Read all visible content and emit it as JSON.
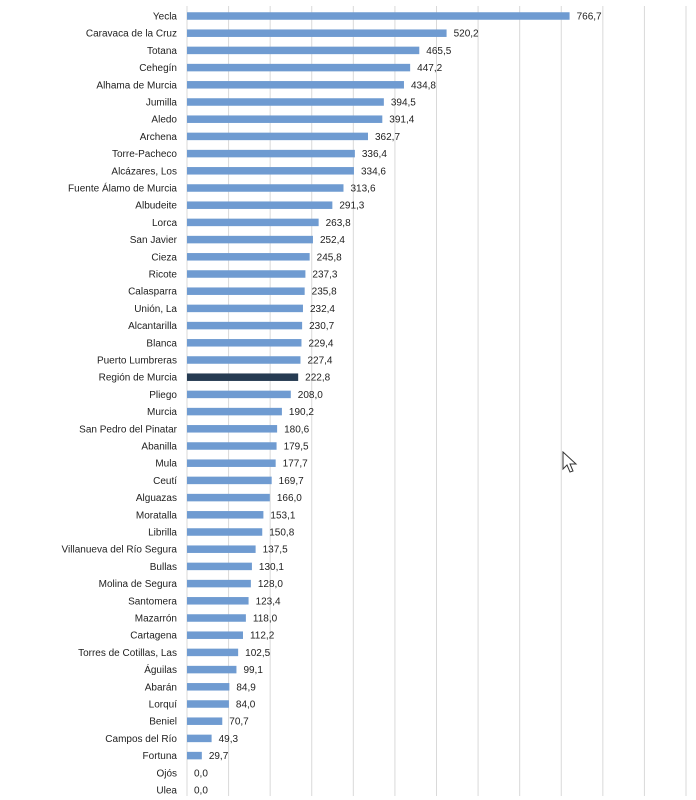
{
  "chart_data": {
    "type": "bar",
    "orientation": "horizontal",
    "grid": true,
    "xlim": [
      0,
      1000
    ],
    "default_color": "#6f9bd1",
    "highlight_color": "#263b52",
    "highlight_category": "Región de Murcia",
    "categories": [
      "Yecla",
      "Caravaca de la Cruz",
      "Totana",
      "Cehegín",
      "Alhama de Murcia",
      "Jumilla",
      "Aledo",
      "Archena",
      "Torre-Pacheco",
      "Alcázares, Los",
      "Fuente Álamo de Murcia",
      "Albudeite",
      "Lorca",
      "San Javier",
      "Cieza",
      "Ricote",
      "Calasparra",
      "Unión, La",
      "Alcantarilla",
      "Blanca",
      "Puerto Lumbreras",
      "Región de Murcia",
      "Pliego",
      "Murcia",
      "San Pedro del Pinatar",
      "Abanilla",
      "Mula",
      "Ceutí",
      "Alguazas",
      "Moratalla",
      "Librilla",
      "Villanueva del Río Segura",
      "Bullas",
      "Molina de Segura",
      "Santomera",
      "Mazarrón",
      "Cartagena",
      "Torres de Cotillas, Las",
      "Águilas",
      "Abarán",
      "Lorquí",
      "Beniel",
      "Campos del Río",
      "Fortuna",
      "Ojós",
      "Ulea"
    ],
    "values": [
      766.7,
      520.2,
      465.5,
      447.2,
      434.8,
      394.5,
      391.4,
      362.7,
      336.4,
      334.6,
      313.6,
      291.3,
      263.8,
      252.4,
      245.8,
      237.3,
      235.8,
      232.4,
      230.7,
      229.4,
      227.4,
      222.8,
      208.0,
      190.2,
      180.6,
      179.5,
      177.7,
      169.7,
      166.0,
      153.1,
      150.8,
      137.5,
      130.1,
      128.0,
      123.4,
      118.0,
      112.2,
      102.5,
      99.1,
      84.9,
      84.0,
      70.7,
      49.3,
      29.7,
      0.0,
      0.0
    ],
    "value_labels": [
      "766,7",
      "520,2",
      "465,5",
      "447,2",
      "434,8",
      "394,5",
      "391,4",
      "362,7",
      "336,4",
      "334,6",
      "313,6",
      "291,3",
      "263,8",
      "252,4",
      "245,8",
      "237,3",
      "235,8",
      "232,4",
      "230,7",
      "229,4",
      "227,4",
      "222,8",
      "208,0",
      "190,2",
      "180,6",
      "179,5",
      "177,7",
      "169,7",
      "166,0",
      "153,1",
      "150,8",
      "137,5",
      "130,1",
      "128,0",
      "123,4",
      "118,0",
      "112,2",
      "102,5",
      "99,1",
      "84,9",
      "84,0",
      "70,7",
      "49,3",
      "29,7",
      "0,0",
      "0,0"
    ]
  },
  "cursor_icon": "arrow-pointer-icon"
}
